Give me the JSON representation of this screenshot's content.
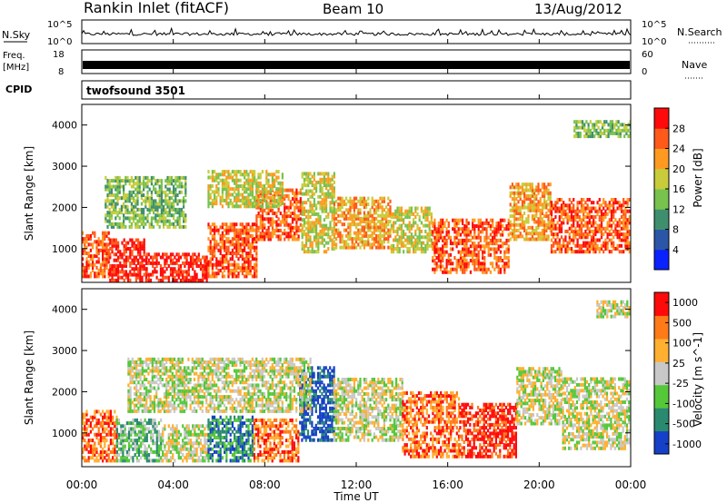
{
  "header": {
    "station": "Rankin Inlet (fitACF)",
    "beam": "Beam 10",
    "date": "13/Aug/2012"
  },
  "noise_panel": {
    "left_label": "N.Sky",
    "right_label": "N.Search",
    "left_ticks": [
      "10^5",
      "10^0"
    ],
    "right_ticks": [
      "10^5",
      "10^0"
    ]
  },
  "freq_panel": {
    "left_label_line1": "Freq.",
    "left_label_line2": "[MHz]",
    "right_label": "Nave",
    "left_ticks": [
      "18",
      "8"
    ],
    "right_ticks": [
      "60",
      "0"
    ]
  },
  "cpid_panel": {
    "label": "CPID",
    "value": "twofsound 3501"
  },
  "x_axis": {
    "label": "Time UT",
    "ticks": [
      "00:00",
      "04:00",
      "08:00",
      "12:00",
      "16:00",
      "20:00",
      "00:00"
    ],
    "range_hours": [
      0,
      24
    ]
  },
  "chart_data": [
    {
      "type": "heatmap",
      "quantity": "power",
      "ylabel": "Slant Range [km]",
      "ylim": [
        180,
        4500
      ],
      "yticks": [
        "1000",
        "2000",
        "3000",
        "4000"
      ],
      "colorbar_label": "Power [dB]",
      "colorbar_ticks": [
        "4",
        "8",
        "12",
        "16",
        "20",
        "24",
        "28"
      ],
      "colorscale": [
        "#0a22ff",
        "#2b56a8",
        "#3f8f6e",
        "#78c24e",
        "#c8cc3a",
        "#ff9a20",
        "#ff5a1a",
        "#ff0a0a"
      ],
      "blocks": [
        {
          "t": [
            0.0,
            1.2
          ],
          "r": [
            300,
            1400
          ],
          "level": 6
        },
        {
          "t": [
            1.2,
            2.8
          ],
          "r": [
            200,
            1200
          ],
          "level": 7
        },
        {
          "t": [
            2.8,
            5.5
          ],
          "r": [
            200,
            900
          ],
          "level": 7
        },
        {
          "t": [
            5.5,
            7.6
          ],
          "r": [
            300,
            1600
          ],
          "level": 6
        },
        {
          "t": [
            7.6,
            9.6
          ],
          "r": [
            1200,
            2400
          ],
          "level": 6
        },
        {
          "t": [
            9.6,
            11.0
          ],
          "r": [
            900,
            2800
          ],
          "level": 4
        },
        {
          "t": [
            11.0,
            13.5
          ],
          "r": [
            1000,
            2200
          ],
          "level": 5
        },
        {
          "t": [
            13.5,
            15.3
          ],
          "r": [
            900,
            2000
          ],
          "level": 4
        },
        {
          "t": [
            15.3,
            18.7
          ],
          "r": [
            400,
            1700
          ],
          "level": 6
        },
        {
          "t": [
            18.7,
            20.5
          ],
          "r": [
            1200,
            2600
          ],
          "level": 5
        },
        {
          "t": [
            20.5,
            24.0
          ],
          "r": [
            900,
            2200
          ],
          "level": 6
        },
        {
          "t": [
            1.0,
            4.5
          ],
          "r": [
            1500,
            2700
          ],
          "level": 3
        },
        {
          "t": [
            5.5,
            8.8
          ],
          "r": [
            2000,
            2900
          ],
          "level": 4
        },
        {
          "t": [
            21.5,
            24.0
          ],
          "r": [
            3700,
            4100
          ],
          "level": 3
        }
      ]
    },
    {
      "type": "heatmap",
      "quantity": "velocity",
      "ylabel": "Slant Range [km]",
      "ylim": [
        180,
        4500
      ],
      "yticks": [
        "1000",
        "2000",
        "3000",
        "4000"
      ],
      "colorbar_label": "Velocity [m s^-1]",
      "colorbar_ticks": [
        "1000",
        "500",
        "100",
        "25",
        "-25",
        "-100",
        "-500",
        "-1000"
      ],
      "colorscale": [
        "#1540c8",
        "#2a8a70",
        "#55c83a",
        "#c8c8c8",
        "#ffb030",
        "#ff7a18",
        "#ff0a0a"
      ],
      "blocks": [
        {
          "t": [
            0.0,
            1.5
          ],
          "r": [
            300,
            1500
          ],
          "level": 5
        },
        {
          "t": [
            1.5,
            3.5
          ],
          "r": [
            300,
            1300
          ],
          "level": 2
        },
        {
          "t": [
            3.5,
            5.5
          ],
          "r": [
            300,
            1200
          ],
          "level": 3
        },
        {
          "t": [
            5.5,
            7.5
          ],
          "r": [
            300,
            1400
          ],
          "level": 1
        },
        {
          "t": [
            7.5,
            9.5
          ],
          "r": [
            300,
            1300
          ],
          "level": 5
        },
        {
          "t": [
            9.5,
            11.0
          ],
          "r": [
            800,
            2600
          ],
          "level": 0
        },
        {
          "t": [
            11.0,
            14.0
          ],
          "r": [
            800,
            2300
          ],
          "level": 3
        },
        {
          "t": [
            14.0,
            16.5
          ],
          "r": [
            400,
            2000
          ],
          "level": 5
        },
        {
          "t": [
            16.5,
            19.0
          ],
          "r": [
            400,
            1700
          ],
          "level": 6
        },
        {
          "t": [
            19.0,
            21.0
          ],
          "r": [
            1200,
            2600
          ],
          "level": 3
        },
        {
          "t": [
            21.0,
            24.0
          ],
          "r": [
            600,
            2300
          ],
          "level": 3
        },
        {
          "t": [
            2.0,
            10.0
          ],
          "r": [
            1500,
            2800
          ],
          "level": 3
        },
        {
          "t": [
            22.5,
            24.0
          ],
          "r": [
            3800,
            4200
          ],
          "level": 3
        }
      ]
    }
  ]
}
